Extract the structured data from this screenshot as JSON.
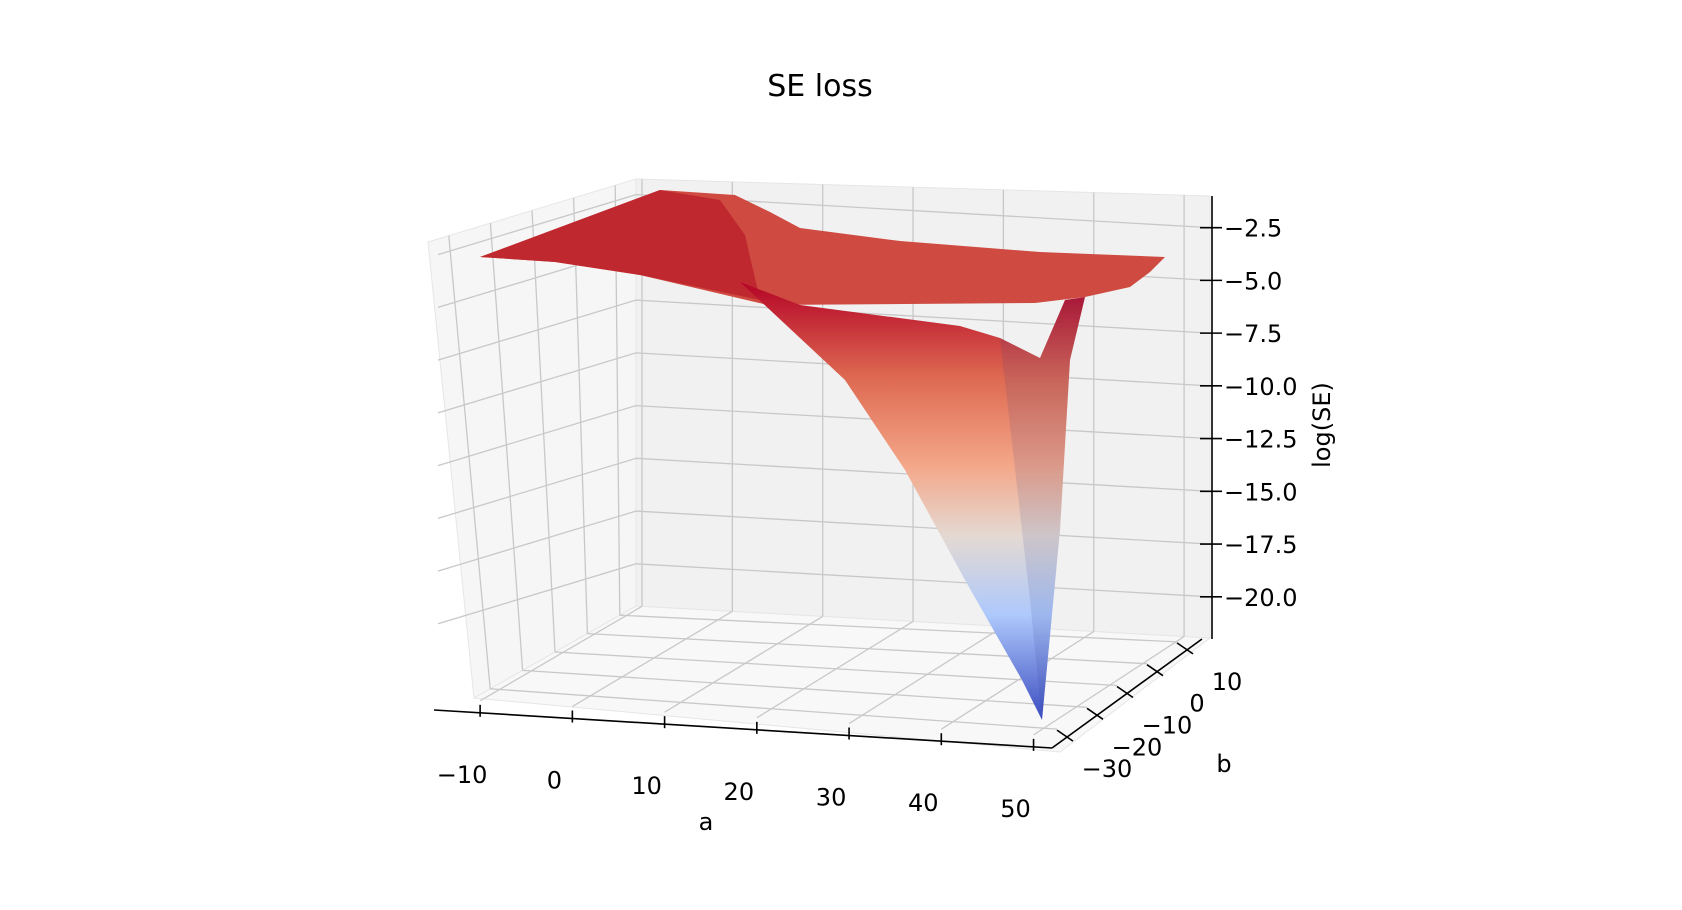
{
  "chart_data": {
    "type": "surface3d",
    "title": "SE loss",
    "xlabel": "a",
    "ylabel": "b",
    "zlabel": "log(SE)",
    "x_ticks": [
      -10,
      0,
      10,
      20,
      30,
      40,
      50
    ],
    "y_ticks": [
      -30,
      -20,
      -10,
      0,
      10
    ],
    "z_ticks": [
      -2.5,
      -5.0,
      -7.5,
      -10.0,
      -12.5,
      -15.0,
      -17.5,
      -20.0
    ],
    "xlim": [
      -15,
      52
    ],
    "ylim": [
      -35,
      15
    ],
    "zlim": [
      -22,
      -1
    ],
    "colormap": "coolwarm",
    "grid": true,
    "surface_notes": {
      "plateau_z": -2.0,
      "minimum": {
        "a": 50,
        "b": -28,
        "z": -22
      }
    },
    "colors": {
      "high": "#b40426",
      "mid": "#dddcdc",
      "low": "#3b4cc0",
      "pane": "#f2f2f2",
      "grid": "#c8c8c8"
    }
  }
}
